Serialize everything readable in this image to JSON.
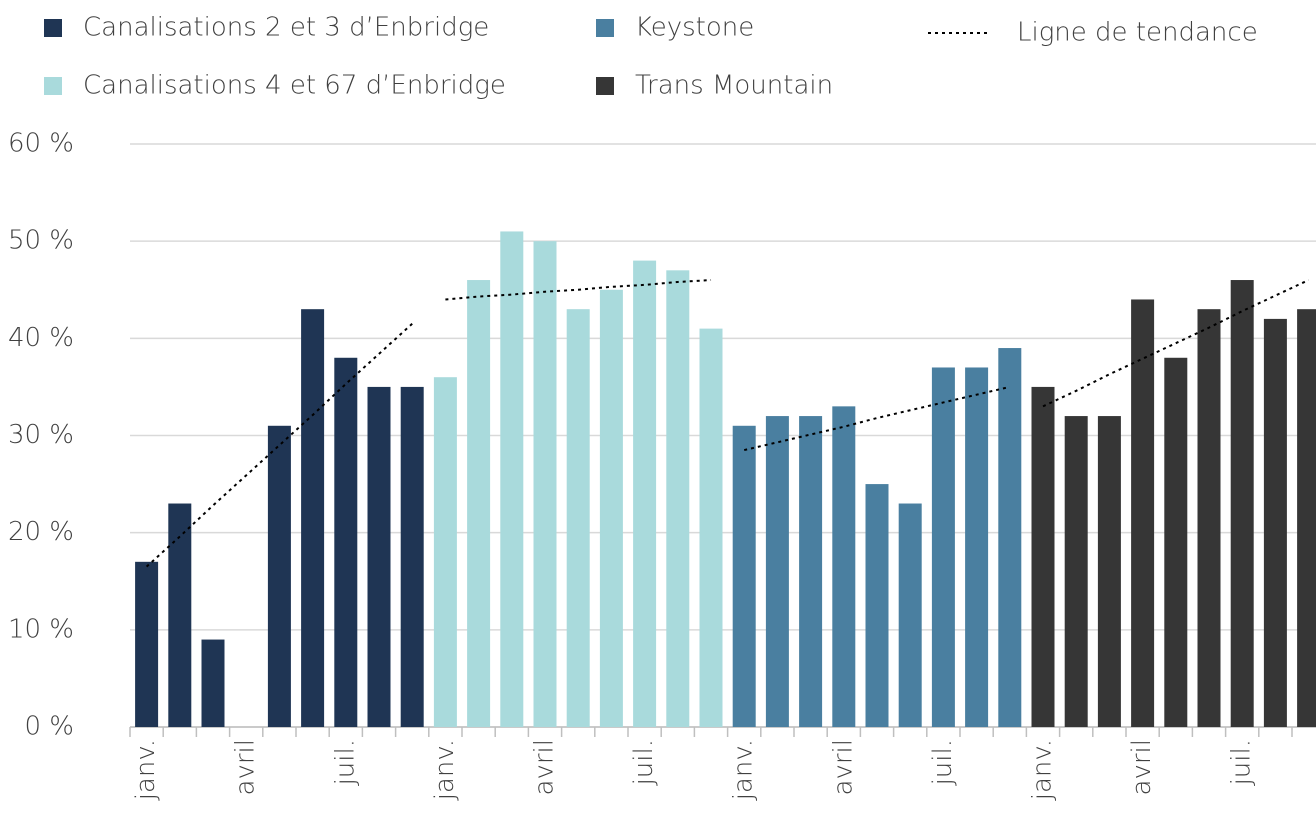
{
  "chart_data": {
    "type": "bar",
    "categories": [
      "janv.",
      null,
      null,
      "avril",
      null,
      null,
      "juil.",
      null,
      null,
      "janv.",
      null,
      null,
      "avril",
      null,
      null,
      "juil.",
      null,
      null,
      "janv.",
      null,
      null,
      "avril",
      null,
      null,
      "juil.",
      null,
      null,
      "janv.",
      null,
      null,
      "avril",
      null,
      null,
      "juil.",
      null,
      null
    ],
    "series": [
      {
        "name": "Canalisations   2 et 3 d’Enbridge",
        "color": "#1f3554",
        "values": [
          17,
          23,
          9,
          0,
          31,
          43,
          38,
          35,
          35,
          null,
          null,
          null,
          null,
          null,
          null,
          null,
          null,
          null,
          null,
          null,
          null,
          null,
          null,
          null,
          null,
          null,
          null,
          null,
          null,
          null,
          null,
          null,
          null,
          null,
          null,
          null
        ]
      },
      {
        "name": "Canalisations   4 et 67 d’Enbridge",
        "color": "#a9dadc",
        "values": [
          null,
          null,
          null,
          null,
          null,
          null,
          null,
          null,
          null,
          36,
          46,
          51,
          50,
          43,
          45,
          48,
          47,
          41,
          null,
          null,
          null,
          null,
          null,
          null,
          null,
          null,
          null,
          null,
          null,
          null,
          null,
          null,
          null,
          null,
          null,
          null
        ]
      },
      {
        "name": "Keystone",
        "color": "#4a7fa0",
        "values": [
          null,
          null,
          null,
          null,
          null,
          null,
          null,
          null,
          null,
          null,
          null,
          null,
          null,
          null,
          null,
          null,
          null,
          null,
          31,
          32,
          32,
          33,
          25,
          23,
          37,
          37,
          39,
          null,
          null,
          null,
          null,
          null,
          null,
          null,
          null,
          null
        ]
      },
      {
        "name": "Trans Mountain",
        "color": "#363636",
        "values": [
          null,
          null,
          null,
          null,
          null,
          null,
          null,
          null,
          null,
          null,
          null,
          null,
          null,
          null,
          null,
          null,
          null,
          null,
          null,
          null,
          null,
          null,
          null,
          null,
          null,
          null,
          null,
          35,
          32,
          32,
          44,
          38,
          43,
          46,
          42,
          43
        ]
      },
      {
        "name": "Ligne de tendance",
        "type": "line",
        "color": "#000000",
        "dashed": true,
        "values": [
          16.5,
          19.6,
          22.8,
          25.9,
          29.0,
          32.1,
          35.3,
          38.4,
          41.5,
          44.0,
          44.3,
          44.5,
          44.8,
          45.0,
          45.3,
          45.5,
          45.8,
          46.0,
          28.5,
          29.3,
          30.1,
          30.9,
          31.8,
          32.6,
          33.4,
          34.2,
          35.0,
          33.0,
          34.6,
          36.3,
          37.9,
          39.5,
          41.1,
          42.8,
          44.4,
          46.0
        ]
      }
    ],
    "ylim": [
      0,
      60
    ],
    "yticks": [
      {
        "value": 0,
        "label": "0 %"
      },
      {
        "value": 10,
        "label": "10 %"
      },
      {
        "value": 20,
        "label": "20 %"
      },
      {
        "value": 30,
        "label": "30 %"
      },
      {
        "value": 40,
        "label": "40 %"
      },
      {
        "value": 50,
        "label": "50 %"
      },
      {
        "value": 60,
        "label": "60 %"
      }
    ],
    "grid": true,
    "legend": "top"
  }
}
